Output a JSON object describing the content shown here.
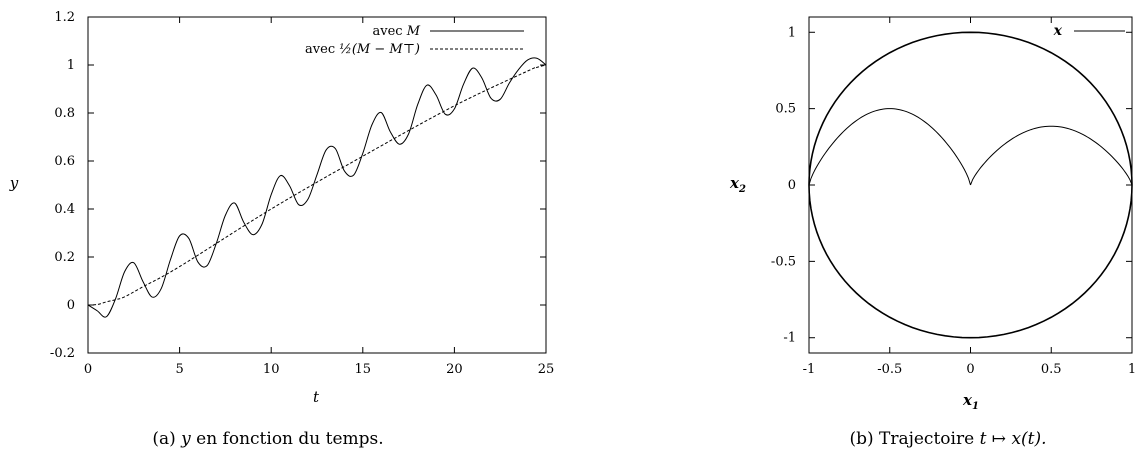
{
  "chart_data": [
    {
      "type": "line",
      "xlabel": "t",
      "ylabel": "y",
      "xlim": [
        0,
        25
      ],
      "ylim": [
        -0.2,
        1.2
      ],
      "x_ticks": [
        "0",
        "5",
        "10",
        "15",
        "20",
        "25"
      ],
      "y_ticks": [
        "-0.2",
        "0",
        "0.2",
        "0.4",
        "0.6",
        "0.8",
        "1",
        "1.2"
      ],
      "legend_position": "top-right",
      "grid": false,
      "series": [
        {
          "name": "avec M",
          "legend_prefix": "avec",
          "legend_math": "M",
          "style": "solid",
          "x": [
            0,
            0.5,
            1,
            1.5,
            2,
            2.5,
            3,
            3.5,
            4,
            4.5,
            5,
            5.5,
            6,
            6.5,
            7,
            7.5,
            8,
            8.5,
            9,
            9.5,
            10,
            10.5,
            11,
            11.5,
            12,
            12.5,
            13,
            13.5,
            14,
            14.5,
            15,
            15.5,
            16,
            16.5,
            17,
            17.5,
            18,
            18.5,
            19,
            19.5,
            20,
            20.5,
            21,
            21.5,
            22,
            22.5,
            23,
            23.5,
            24,
            24.5,
            25
          ],
          "y": [
            0,
            -0.024,
            -0.049,
            0.025,
            0.139,
            0.176,
            0.098,
            0.033,
            0.069,
            0.189,
            0.288,
            0.278,
            0.179,
            0.164,
            0.256,
            0.374,
            0.425,
            0.345,
            0.293,
            0.337,
            0.46,
            0.539,
            0.497,
            0.418,
            0.44,
            0.543,
            0.646,
            0.652,
            0.558,
            0.541,
            0.632,
            0.751,
            0.802,
            0.722,
            0.67,
            0.713,
            0.836,
            0.916,
            0.875,
            0.795,
            0.817,
            0.92,
            0.987,
            0.946,
            0.861,
            0.857,
            0.925,
            0.981,
            1.021,
            1.028,
            1.0
          ]
        },
        {
          "name": "avec ½(M − Mᵀ)",
          "legend_prefix": "avec",
          "legend_math": "½(M − M⊤)",
          "style": "dashed",
          "x": [
            0,
            0.5,
            1,
            1.5,
            2,
            3,
            5,
            10,
            15,
            20,
            24,
            24.5,
            25
          ],
          "y": [
            0,
            0.002,
            0.013,
            0.022,
            0.034,
            0.076,
            0.16,
            0.4,
            0.62,
            0.83,
            0.975,
            0.99,
            1.0
          ]
        }
      ]
    },
    {
      "type": "line",
      "xlabel": "x1",
      "ylabel": "x2",
      "xlim": [
        -1,
        1
      ],
      "ylim": [
        -1.1,
        1.1
      ],
      "x_ticks": [
        "-1",
        "-0.5",
        "0",
        "0.5",
        "1"
      ],
      "y_ticks": [
        "-1",
        "-0.5",
        "0",
        "0.5",
        "1"
      ],
      "legend_position": "top-right",
      "grid": false,
      "series": [
        {
          "name": "x",
          "style": "solid",
          "components": [
            "unit circle x1² + x2² = 1",
            "arc from (-1,0) peak (-0.5,0.5) to (0,0)",
            "arc from (0,0) peak (0.5,0.38) to (1,0)"
          ]
        }
      ]
    }
  ],
  "captions": {
    "a_label": "(a)",
    "a_var": "y",
    "a_text": "en fonction du temps.",
    "b_label": "(b)",
    "b_text": "Trajectoire",
    "b_math": "t ↦ x(t)."
  }
}
